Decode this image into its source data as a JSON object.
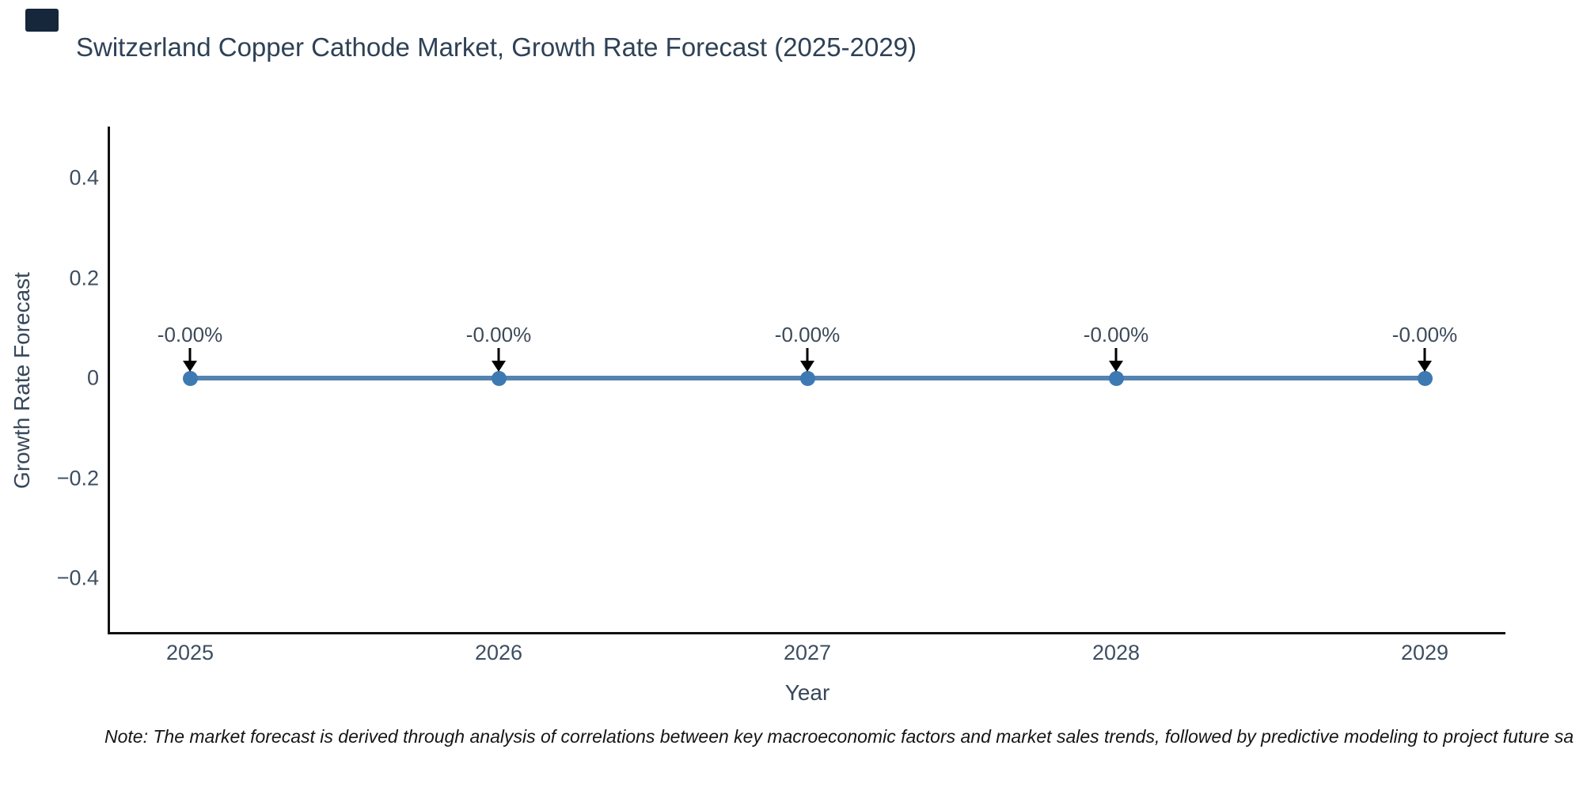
{
  "title": "Switzerland Copper Cathode Market, Growth Rate Forecast (2025-2029)",
  "note": "Note: The market forecast is derived through analysis of correlations between key macroeconomic factors and market sales trends, followed by predictive modeling to project future sa",
  "colors": {
    "line": "#5583b0",
    "marker": "#3d79b3",
    "axis": "#111111",
    "arrow": "#000000",
    "title_text": "#2e4156",
    "tick_text": "#3e4e61",
    "note_text": "#151515",
    "corner_mark": "#16263b"
  },
  "chart_data": {
    "type": "line",
    "title": "Switzerland Copper Cathode Market, Growth Rate Forecast (2025-2029)",
    "x": [
      2025,
      2026,
      2027,
      2028,
      2029
    ],
    "series": [
      {
        "name": "Growth Rate Forecast",
        "values": [
          0,
          0,
          0,
          0,
          0
        ]
      }
    ],
    "point_labels": [
      "-0.00%",
      "-0.00%",
      "-0.00%",
      "-0.00%",
      "-0.00%"
    ],
    "xlabel": "Year",
    "ylabel": "Growth Rate Forecast",
    "ylim": [
      -0.5,
      0.5
    ],
    "yticks": [
      0.4,
      0.2,
      0,
      -0.2,
      -0.4
    ],
    "ytick_labels": [
      "0.4",
      "0.2",
      "0",
      "−0.2",
      "−0.4"
    ],
    "xtick_labels": [
      "2025",
      "2026",
      "2027",
      "2028",
      "2029"
    ],
    "grid": false,
    "legend_position": "none",
    "annotations": "black down-arrows from each data label to its point marker"
  }
}
